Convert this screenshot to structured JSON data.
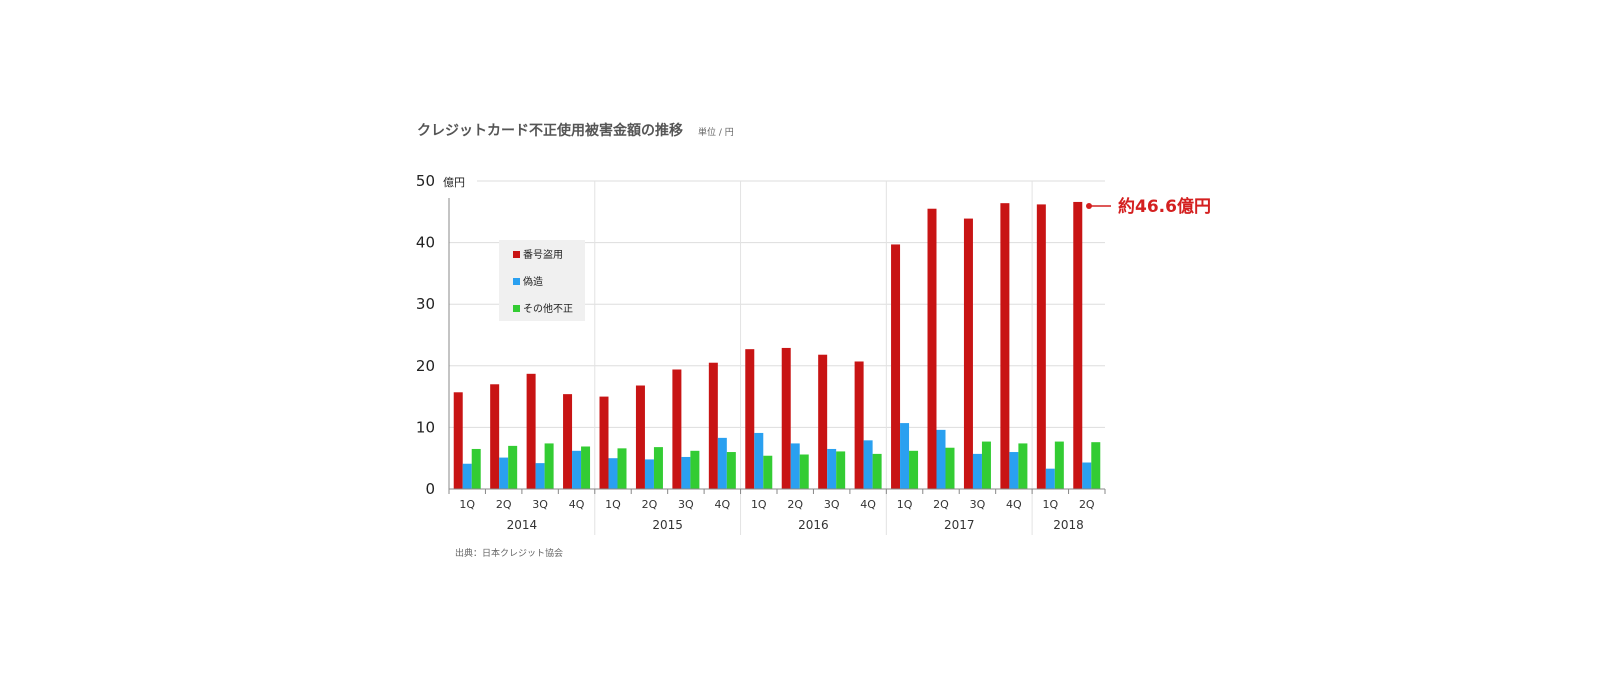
{
  "title": "クレジットカード不正使用被害金額の推移",
  "unit_note": "単位 / 円",
  "source": "出典：日本クレジット協会",
  "callout": "約46.6億円",
  "chart_data": {
    "type": "bar",
    "title": "クレジットカード不正使用被害金額の推移",
    "y_unit_label": "億円",
    "ylim": [
      0,
      50
    ],
    "yticks": [
      "0",
      "10",
      "20",
      "30",
      "40",
      "50"
    ],
    "grid": true,
    "legend_position": "top-left",
    "categories": [
      "1Q",
      "2Q",
      "3Q",
      "4Q",
      "1Q",
      "2Q",
      "3Q",
      "4Q",
      "1Q",
      "2Q",
      "3Q",
      "4Q",
      "1Q",
      "2Q",
      "3Q",
      "4Q",
      "1Q",
      "2Q"
    ],
    "year_groups": [
      {
        "label": "2014",
        "count": 4
      },
      {
        "label": "2015",
        "count": 4
      },
      {
        "label": "2016",
        "count": 4
      },
      {
        "label": "2017",
        "count": 4
      },
      {
        "label": "2018",
        "count": 2
      }
    ],
    "series": [
      {
        "name": "番号盗用",
        "color": "#c81414",
        "values": [
          15.7,
          17.0,
          18.7,
          15.4,
          15.0,
          16.8,
          19.4,
          20.5,
          22.7,
          22.9,
          21.8,
          20.7,
          39.7,
          45.5,
          43.9,
          46.4,
          46.2,
          46.6
        ]
      },
      {
        "name": "偽造",
        "color": "#2aa0f0",
        "values": [
          4.1,
          5.1,
          4.2,
          6.2,
          5.0,
          4.8,
          5.2,
          8.3,
          9.1,
          7.4,
          6.5,
          7.9,
          10.7,
          9.6,
          5.7,
          6.0,
          3.3,
          4.3
        ]
      },
      {
        "name": "その他不正",
        "color": "#33cc33",
        "values": [
          6.5,
          7.0,
          7.4,
          6.9,
          6.6,
          6.8,
          6.2,
          6.0,
          5.4,
          5.6,
          6.1,
          5.7,
          6.2,
          6.7,
          7.7,
          7.4,
          7.7,
          7.6
        ]
      }
    ]
  }
}
